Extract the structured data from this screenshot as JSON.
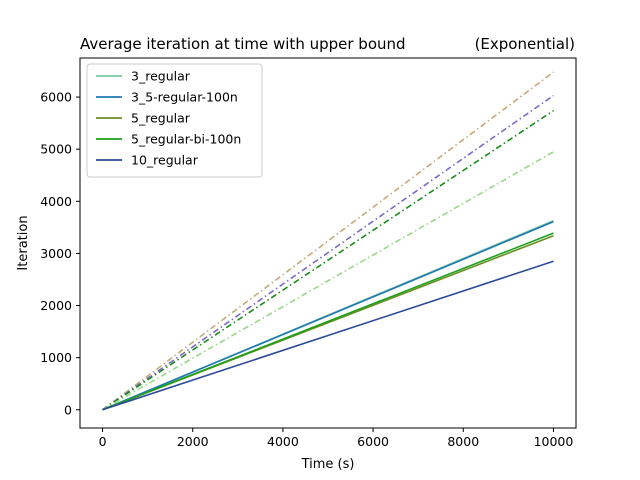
{
  "chart_data": {
    "type": "line",
    "title": "Average iteration at time with upper bound",
    "title_right": "(Exponential)",
    "xlabel": "Time (s)",
    "ylabel": "Iteration",
    "xlim": [
      -500,
      10500
    ],
    "ylim": [
      -350,
      6750
    ],
    "x_ticks": [
      0,
      2000,
      4000,
      6000,
      8000,
      10000
    ],
    "y_ticks": [
      0,
      1000,
      2000,
      3000,
      4000,
      5000,
      6000
    ],
    "x_tick_labels": [
      "0",
      "2000",
      "4000",
      "6000",
      "8000",
      "10000"
    ],
    "y_tick_labels": [
      "0",
      "1000",
      "2000",
      "3000",
      "4000",
      "5000",
      "6000"
    ],
    "legend_position": "upper-left",
    "x": [
      0,
      10000
    ],
    "series": [
      {
        "name": "3_regular",
        "values": [
          0,
          3630
        ],
        "color": "#7cc6a4",
        "style": "solid"
      },
      {
        "name": "3_5-regular-100n",
        "values": [
          0,
          3610
        ],
        "color": "#1f78b4",
        "style": "solid"
      },
      {
        "name": "5_regular",
        "values": [
          0,
          3340
        ],
        "color": "#6b8e23",
        "style": "solid"
      },
      {
        "name": "5_regular-bi-100n",
        "values": [
          0,
          3390
        ],
        "color": "#1aa01a",
        "style": "solid"
      },
      {
        "name": "10_regular",
        "values": [
          0,
          2850
        ],
        "color": "#2c4a9c",
        "style": "solid"
      }
    ],
    "bound_series": [
      {
        "values": [
          0,
          6480
        ],
        "color": "#c8a878",
        "style": "dashdot"
      },
      {
        "values": [
          0,
          6030
        ],
        "color": "#7b68c8",
        "style": "dashdot"
      },
      {
        "values": [
          0,
          5740
        ],
        "color": "#1a8c1a",
        "style": "dashdot"
      },
      {
        "values": [
          0,
          4950
        ],
        "color": "#98d888",
        "style": "dashdot"
      }
    ]
  }
}
